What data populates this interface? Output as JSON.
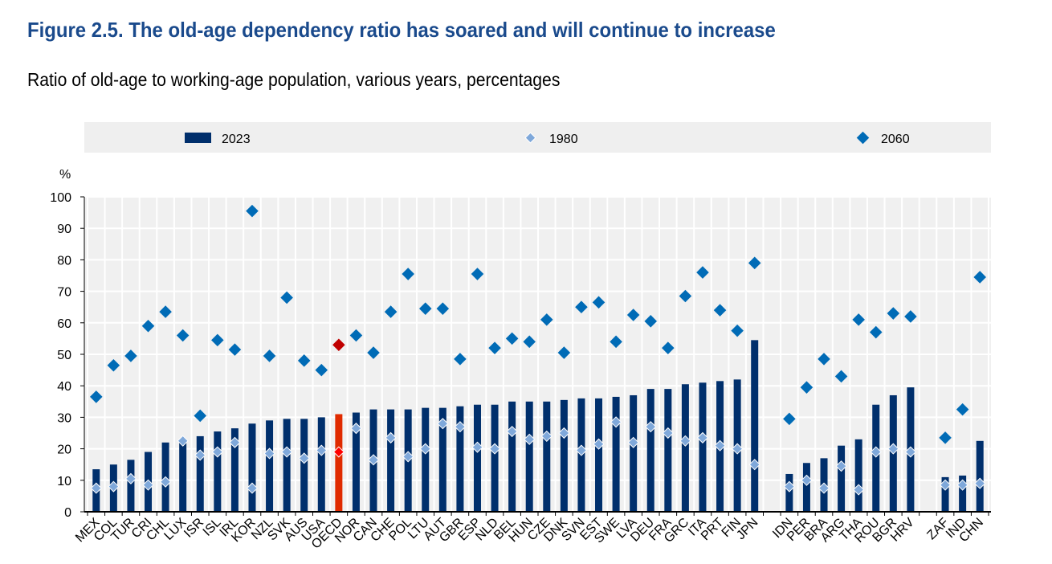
{
  "chart_data": {
    "type": "bar",
    "title": "Figure 2.5. The old-age dependency ratio has soared and will continue to increase",
    "subtitle": "Ratio of old-age to working-age population, various years, percentages",
    "ylabel": "%",
    "ylim": [
      0,
      100
    ],
    "yticks": [
      0,
      10,
      20,
      30,
      40,
      50,
      60,
      70,
      80,
      90,
      100
    ],
    "grid": true,
    "legend_placement": "top",
    "legend": [
      {
        "name": "2023",
        "marker": "bar"
      },
      {
        "name": "1980",
        "marker": "diamond"
      },
      {
        "name": "2060",
        "marker": "diamond"
      }
    ],
    "colors": {
      "bar": "#002f6c",
      "highlight_bar": "#e02b00",
      "d1980": "#7fa8da",
      "d2060": "#006bb6",
      "highlight_2060": "#c00000",
      "highlight_1980": "#ff0000"
    },
    "categories": [
      "MEX",
      "COL",
      "TUR",
      "CRI",
      "CHL",
      "LUX",
      "ISR",
      "ISL",
      "IRL",
      "KOR",
      "NZL",
      "SVK",
      "AUS",
      "USA",
      "OECD",
      "NOR",
      "CAN",
      "CHE",
      "POL",
      "LTU",
      "AUT",
      "GBR",
      "ESP",
      "NLD",
      "BEL",
      "HUN",
      "CZE",
      "DNK",
      "SVN",
      "EST",
      "SWE",
      "LVA",
      "DEU",
      "FRA",
      "GRC",
      "ITA",
      "PRT",
      "FIN",
      "JPN",
      "",
      "IDN",
      "PER",
      "BRA",
      "ARG",
      "THA",
      "ROU",
      "BGR",
      "HRV",
      "",
      "ZAF",
      "IND",
      "CHN"
    ],
    "highlight": "OECD",
    "series": [
      {
        "name": "2023",
        "values": [
          13.5,
          15,
          16.5,
          19,
          22,
          22.5,
          24,
          25.5,
          26.5,
          28,
          29,
          29.5,
          29.5,
          30,
          31,
          31.5,
          32.5,
          32.5,
          32.5,
          33,
          33,
          33.5,
          34,
          34,
          35,
          35,
          35,
          35.5,
          36,
          36,
          36.5,
          37,
          39,
          39,
          40.5,
          41,
          41.5,
          42,
          54.5,
          null,
          12,
          15.5,
          17,
          21,
          23,
          34,
          37,
          39.5,
          null,
          11,
          11.5,
          22.5
        ]
      },
      {
        "name": "1980",
        "values": [
          7.5,
          8,
          10.5,
          8.5,
          9.5,
          22.5,
          18,
          19,
          22,
          7.5,
          18.5,
          19,
          17,
          19.5,
          19,
          26.5,
          16.5,
          23.5,
          17.5,
          20,
          28,
          27,
          20.5,
          20,
          25.5,
          23,
          24,
          25,
          19.5,
          21.5,
          28.5,
          22,
          27,
          25,
          22.5,
          23.5,
          21,
          20,
          15,
          null,
          8,
          10,
          7.5,
          14.5,
          7,
          19,
          20,
          19,
          null,
          8.5,
          8.5,
          9
        ]
      },
      {
        "name": "2060",
        "values": [
          36.5,
          46.5,
          49.5,
          59,
          63.5,
          56,
          30.5,
          54.5,
          51.5,
          95.5,
          49.5,
          68,
          48,
          45,
          53,
          56,
          50.5,
          63.5,
          75.5,
          64.5,
          64.5,
          48.5,
          75.5,
          52,
          55,
          54,
          61,
          50.5,
          65,
          66.5,
          54,
          62.5,
          60.5,
          52,
          68.5,
          76,
          64,
          57.5,
          79,
          null,
          29.5,
          39.5,
          48.5,
          43,
          61,
          57,
          63,
          62,
          null,
          23.5,
          32.5,
          74.5
        ]
      }
    ]
  }
}
